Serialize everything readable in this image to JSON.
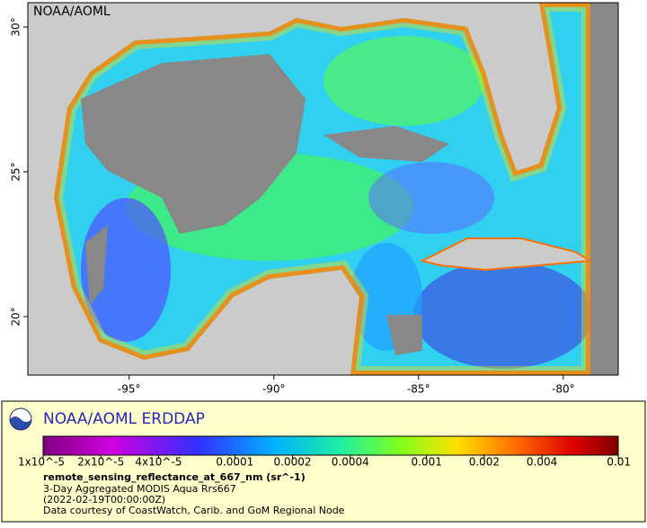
{
  "map": {
    "watermark": "NOAA/AOML",
    "xlim": [
      -98.5,
      -78.1
    ],
    "ylim": [
      17.98,
      30.84
    ],
    "xticks": [
      {
        "value": -95,
        "label": "-95°"
      },
      {
        "value": -90,
        "label": "-90°"
      },
      {
        "value": -85,
        "label": "-85°"
      },
      {
        "value": -80,
        "label": "-80°"
      }
    ],
    "yticks": [
      {
        "value": 20,
        "label": "20°"
      },
      {
        "value": 25,
        "label": "25°"
      },
      {
        "value": 30,
        "label": "30°"
      }
    ]
  },
  "legend": {
    "title": "NOAA/AOML ERDDAP",
    "log_scale": true,
    "colorbar_lim": [
      1e-05,
      0.01
    ],
    "colorbar_ticks": [
      {
        "value": 1e-05,
        "label": "1x10^-5"
      },
      {
        "value": 2e-05,
        "label": "2x10^-5"
      },
      {
        "value": 4e-05,
        "label": "4x10^-5"
      },
      0.0001,
      0.0002,
      0.0004,
      0.001,
      0.002,
      0.004,
      0.01
    ],
    "variable": "remote_sensing_reflectance_at_667_nm (sr^-1)",
    "lines": [
      "3-Day Aggregated MODIS Aqua Rrs667",
      "(2022-02-19T00:00:00Z)",
      "Data courtesy of CoastWatch, Carib. and GoM Regional Node"
    ]
  }
}
